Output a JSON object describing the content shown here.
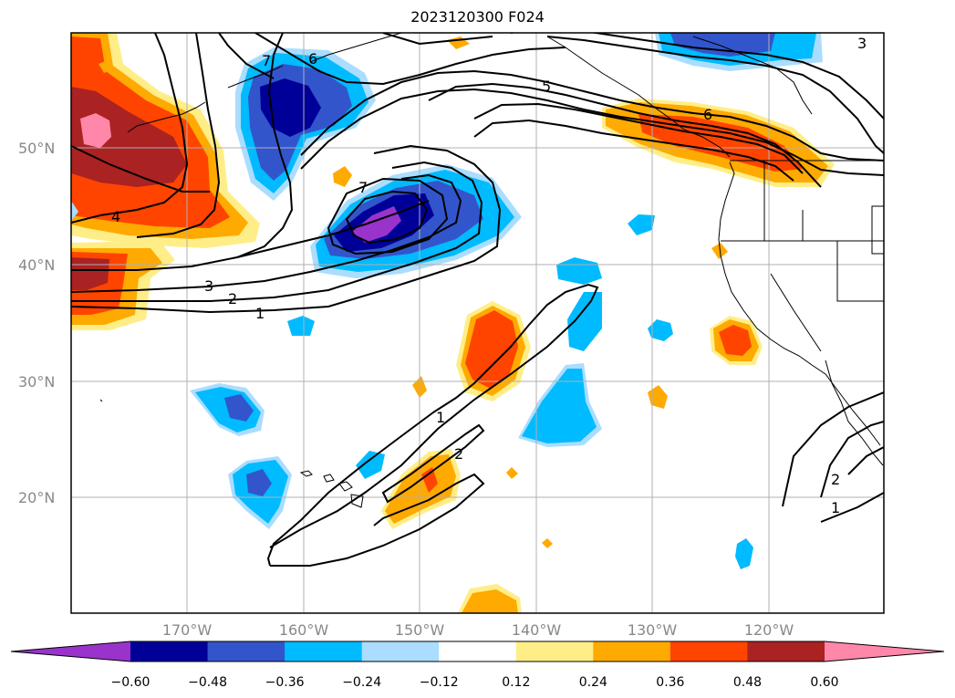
{
  "title": "2023120300 F024",
  "lat_ticks": [
    "50°N",
    "40°N",
    "30°N",
    "20°N"
  ],
  "lon_ticks": [
    "170°W",
    "160°W",
    "150°W",
    "140°W",
    "130°W",
    "120°W"
  ],
  "colorbar": {
    "ticks": [
      "−0.60",
      "−0.48",
      "−0.36",
      "−0.24",
      "−0.12",
      "0.12",
      "0.24",
      "0.36",
      "0.48",
      "0.60"
    ],
    "colors": [
      "#9933cc",
      "#000099",
      "#3355cc",
      "#00bbff",
      "#aaddff",
      "#ffffff",
      "#ffee88",
      "#ffaa00",
      "#ff4400",
      "#aa2222",
      "#ff88aa"
    ]
  },
  "contour_labels": [
    "1",
    "2",
    "3",
    "4",
    "5",
    "6",
    "7",
    "1",
    "2",
    "1",
    "2",
    "3",
    "6",
    "7"
  ],
  "colors": {
    "purple": "#9933cc",
    "navy": "#000099",
    "blue": "#3355cc",
    "cyan": "#00bbff",
    "light_blue": "#aaddff",
    "light_yellow": "#ffee88",
    "orange": "#ffaa00",
    "red_orange": "#ff4400",
    "dark_red": "#aa2222",
    "pink": "#ff88aa"
  }
}
